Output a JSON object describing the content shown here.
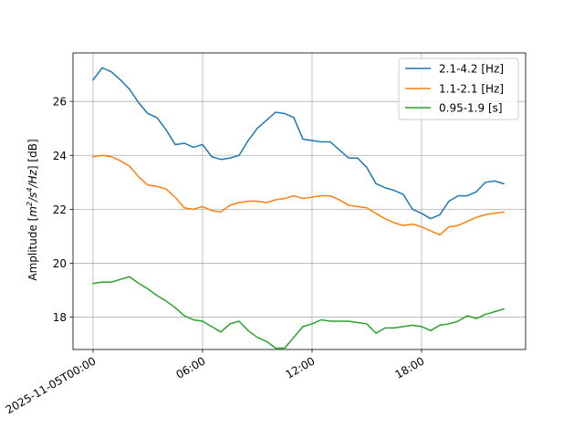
{
  "chart_data": {
    "type": "line",
    "ylabel_parts": {
      "prefix": "Amplitude [",
      "m": "m",
      "m_sup": "2",
      "slash1": "/",
      "s": "s",
      "s_sup": "4",
      "slash2": "/",
      "hz": "Hz",
      "suffix": "] [dB]"
    },
    "xlim_hours": [
      -1.1,
      23.7
    ],
    "ylim": [
      16.8,
      27.8
    ],
    "x_ticks": [
      {
        "hour": 0,
        "label": "2025-11-05T00:00"
      },
      {
        "hour": 6,
        "label": "06:00"
      },
      {
        "hour": 12,
        "label": "12:00"
      },
      {
        "hour": 18,
        "label": "18:00"
      }
    ],
    "y_ticks": [
      {
        "value": 18,
        "label": "18"
      },
      {
        "value": 20,
        "label": "20"
      },
      {
        "value": 22,
        "label": "22"
      },
      {
        "value": 24,
        "label": "24"
      },
      {
        "value": 26,
        "label": "26"
      }
    ],
    "grid": true,
    "legend_position": "top-right",
    "x_hours": [
      0,
      0.5,
      1,
      1.5,
      2,
      2.5,
      3,
      3.5,
      4,
      4.5,
      5,
      5.5,
      6,
      6.5,
      7,
      7.5,
      8,
      8.5,
      9,
      9.5,
      10,
      10.5,
      11,
      11.5,
      12,
      12.5,
      13,
      13.5,
      14,
      14.5,
      15,
      15.5,
      16,
      16.5,
      17,
      17.5,
      18,
      18.5,
      19,
      19.5,
      20,
      20.5,
      21,
      21.5,
      22,
      22.5
    ],
    "series": [
      {
        "name": "2.1-4.2 [Hz]",
        "color": "#1f77b4",
        "values": [
          26.8,
          27.25,
          27.1,
          26.8,
          26.45,
          25.95,
          25.55,
          25.4,
          24.95,
          24.4,
          24.45,
          24.3,
          24.4,
          23.95,
          23.85,
          23.9,
          24.0,
          24.55,
          25.0,
          25.3,
          25.6,
          25.55,
          25.4,
          24.6,
          24.55,
          24.5,
          24.5,
          24.2,
          23.9,
          23.9,
          23.55,
          22.95,
          22.8,
          22.7,
          22.55,
          22.0,
          21.85,
          21.65,
          21.8,
          22.3,
          22.5,
          22.5,
          22.65,
          23.0,
          23.05,
          22.95
        ]
      },
      {
        "name": "1.1-2.1 [Hz]",
        "color": "#ff7f0e",
        "values": [
          23.95,
          24.0,
          23.95,
          23.8,
          23.6,
          23.2,
          22.9,
          22.85,
          22.75,
          22.45,
          22.05,
          22.0,
          22.1,
          21.95,
          21.9,
          22.15,
          22.25,
          22.3,
          22.3,
          22.25,
          22.35,
          22.4,
          22.5,
          22.4,
          22.45,
          22.5,
          22.5,
          22.35,
          22.15,
          22.1,
          22.05,
          21.85,
          21.65,
          21.5,
          21.4,
          21.45,
          21.35,
          21.2,
          21.05,
          21.35,
          21.4,
          21.55,
          21.7,
          21.8,
          21.85,
          21.9
        ]
      },
      {
        "name": "0.95-1.9 [s]",
        "color": "#2ca02c",
        "values": [
          19.25,
          19.3,
          19.3,
          19.4,
          19.5,
          19.25,
          19.05,
          18.8,
          18.6,
          18.35,
          18.05,
          17.9,
          17.85,
          17.65,
          17.45,
          17.75,
          17.85,
          17.5,
          17.25,
          17.1,
          16.85,
          16.85,
          17.25,
          17.65,
          17.75,
          17.9,
          17.85,
          17.85,
          17.85,
          17.8,
          17.75,
          17.4,
          17.6,
          17.6,
          17.65,
          17.7,
          17.65,
          17.5,
          17.7,
          17.75,
          17.85,
          18.05,
          17.95,
          18.1,
          18.2,
          18.3
        ]
      }
    ]
  }
}
